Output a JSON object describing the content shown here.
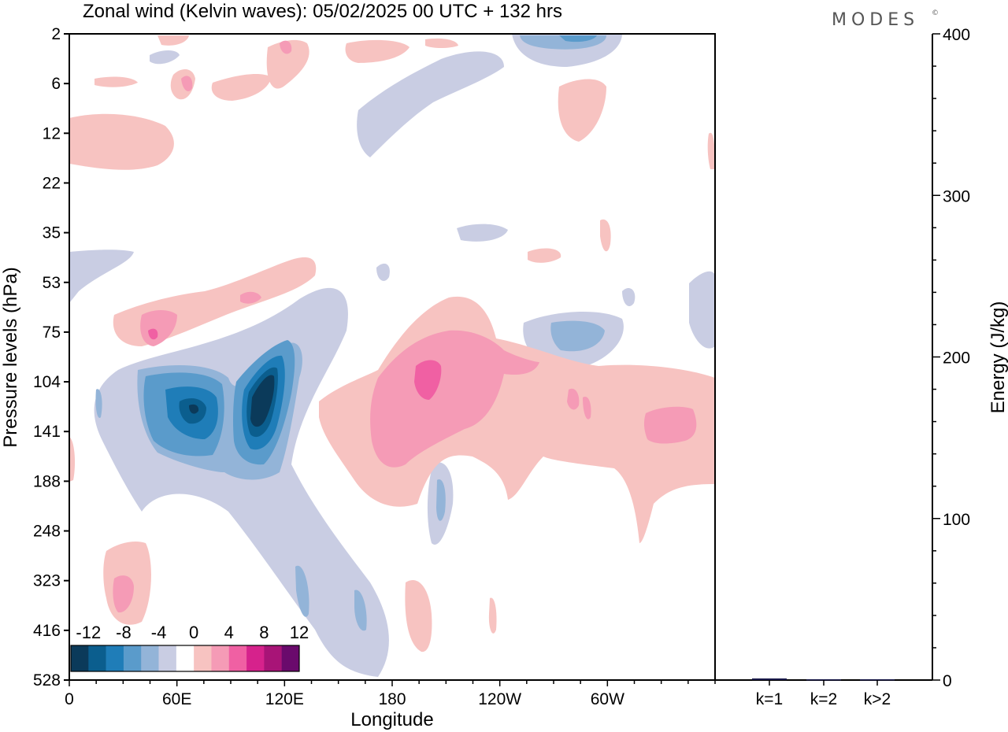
{
  "title": "Zonal wind (Kelvin waves):  05/02/2025  00 UTC  + 132 hrs",
  "brand": "MODES",
  "brand_mark": "©",
  "chart_data": [
    {
      "type": "heatmap",
      "title": "Zonal wind (Kelvin waves):  05/02/2025  00 UTC  + 132 hrs",
      "xlabel": "Longitude",
      "ylabel": "Pressure levels (hPa)",
      "x_ticks": [
        "0",
        "60E",
        "120E",
        "180",
        "120W",
        "60W"
      ],
      "x_tick_values": [
        0,
        60,
        120,
        180,
        240,
        300
      ],
      "xlim": [
        0,
        360
      ],
      "y_ticks": [
        "2",
        "6",
        "12",
        "22",
        "35",
        "53",
        "75",
        "104",
        "141",
        "188",
        "248",
        "323",
        "416",
        "528"
      ],
      "y_scale": "pressure levels (top = 2 hPa, bottom = 528 hPa)",
      "colorbar": {
        "labels": [
          "-12",
          "-8",
          "-4",
          "0",
          "4",
          "8",
          "12"
        ],
        "levels": [
          -14,
          -12,
          -10,
          -8,
          -6,
          -4,
          -2,
          2,
          4,
          6,
          8,
          10,
          12,
          14
        ],
        "colors": [
          "#0b3a5a",
          "#0b5e8e",
          "#1f7db8",
          "#5a9bcb",
          "#93b4d8",
          "#c9cde3",
          "#ffffff",
          "#f7c3c1",
          "#f59bb6",
          "#f060a3",
          "#d6228c",
          "#a81477",
          "#6a0a6c"
        ]
      },
      "features": [
        {
          "sign": "negative",
          "center_lon": 113,
          "center_level": "120",
          "peak": -14
        },
        {
          "sign": "negative",
          "center_lon": 66,
          "center_level": "125",
          "peak": -12
        },
        {
          "sign": "negative",
          "center_lon": 278,
          "center_level": "80",
          "peak": -5
        },
        {
          "sign": "negative",
          "center_lon": 208,
          "center_level": "200",
          "peak": -5
        },
        {
          "sign": "negative",
          "center_lon": 128,
          "center_level": "330",
          "peak": -5
        },
        {
          "sign": "positive",
          "center_lon": 200,
          "center_level": "110",
          "peak": 8
        },
        {
          "sign": "positive",
          "center_lon": 42,
          "center_level": "75",
          "peak": 7
        },
        {
          "sign": "positive",
          "center_lon": 335,
          "center_level": "140",
          "peak": 6
        },
        {
          "sign": "positive",
          "center_lon": 25,
          "center_level": "350",
          "peak": 6
        }
      ]
    },
    {
      "type": "bar",
      "categories": [
        "k=1",
        "k=2",
        "k>2"
      ],
      "values": [
        1,
        0.5,
        0.5
      ],
      "ylabel": "Energy (J/kg)",
      "ylim": [
        0,
        400
      ],
      "y_ticks": [
        0,
        100,
        200,
        300,
        400
      ],
      "color": "#1a1a4a"
    }
  ]
}
